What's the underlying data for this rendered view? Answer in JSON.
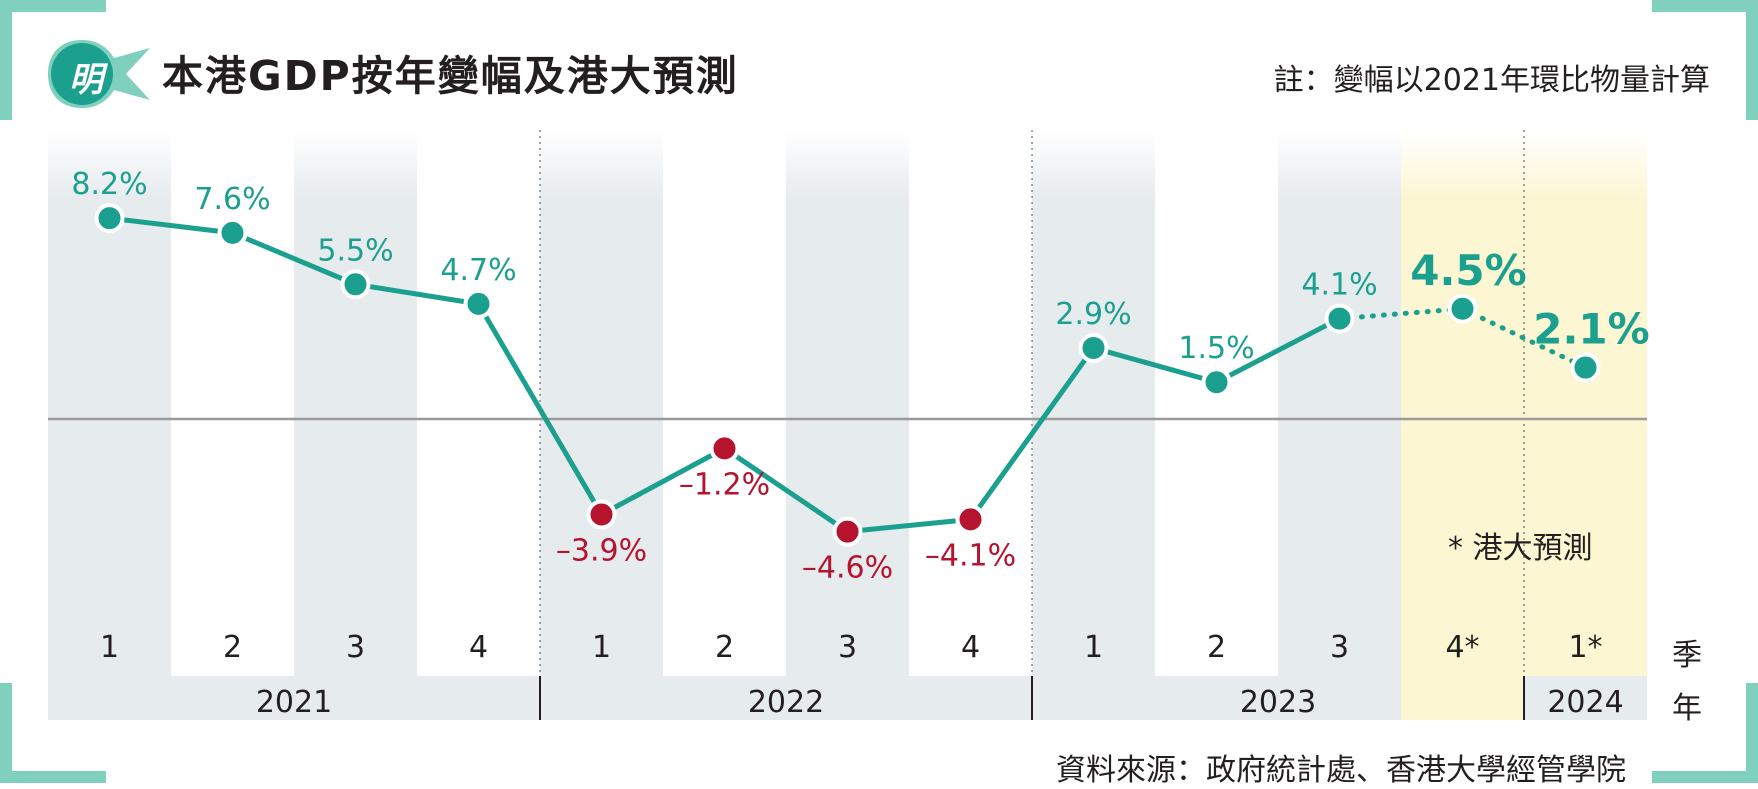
{
  "header": {
    "logo_text": "明",
    "title": "本港GDP按年變幅及港大預測",
    "note": "註：變幅以2021年環比物量計算"
  },
  "footer": {
    "source": "資料來源：政府統計處、香港大學經管學院"
  },
  "annotations": {
    "forecast_note": "* 港大預測"
  },
  "colors": {
    "positive": "#1ba08f",
    "negative": "#b5132e",
    "band_gray": "#e6ebee",
    "forecast_band": "#fdf6d2",
    "zero_line": "#9a9a9a",
    "corner_accent": "#7fd0bd"
  },
  "chart_data": {
    "type": "line",
    "title": "本港GDP按年變幅及港大預測",
    "x_axis_quarter_title": "季",
    "x_axis_year_title": "年",
    "quarters": [
      "1",
      "2",
      "3",
      "4",
      "1",
      "2",
      "3",
      "4",
      "1",
      "2",
      "3",
      "4*",
      "1*"
    ],
    "years": [
      {
        "label": "2021",
        "quarters": 4
      },
      {
        "label": "2022",
        "quarters": 4
      },
      {
        "label": "2023",
        "quarters": 4
      },
      {
        "label": "2024",
        "quarters": 1
      }
    ],
    "series": [
      {
        "values": [
          8.2,
          7.6,
          5.5,
          4.7,
          -3.9,
          -1.2,
          -4.6,
          -4.1,
          2.9,
          1.5,
          4.1,
          4.5,
          2.1
        ],
        "labels": [
          "8.2%",
          "7.6%",
          "5.5%",
          "4.7%",
          "–3.9%",
          "–1.2%",
          "–4.6%",
          "–4.1%",
          "2.9%",
          "1.5%",
          "4.1%",
          "4.5%",
          "2.1%"
        ],
        "forecast": [
          false,
          false,
          false,
          false,
          false,
          false,
          false,
          false,
          false,
          false,
          false,
          true,
          true
        ]
      }
    ],
    "ylim": [
      -7.8,
      11.8
    ],
    "zero_line": true,
    "grid": false
  }
}
